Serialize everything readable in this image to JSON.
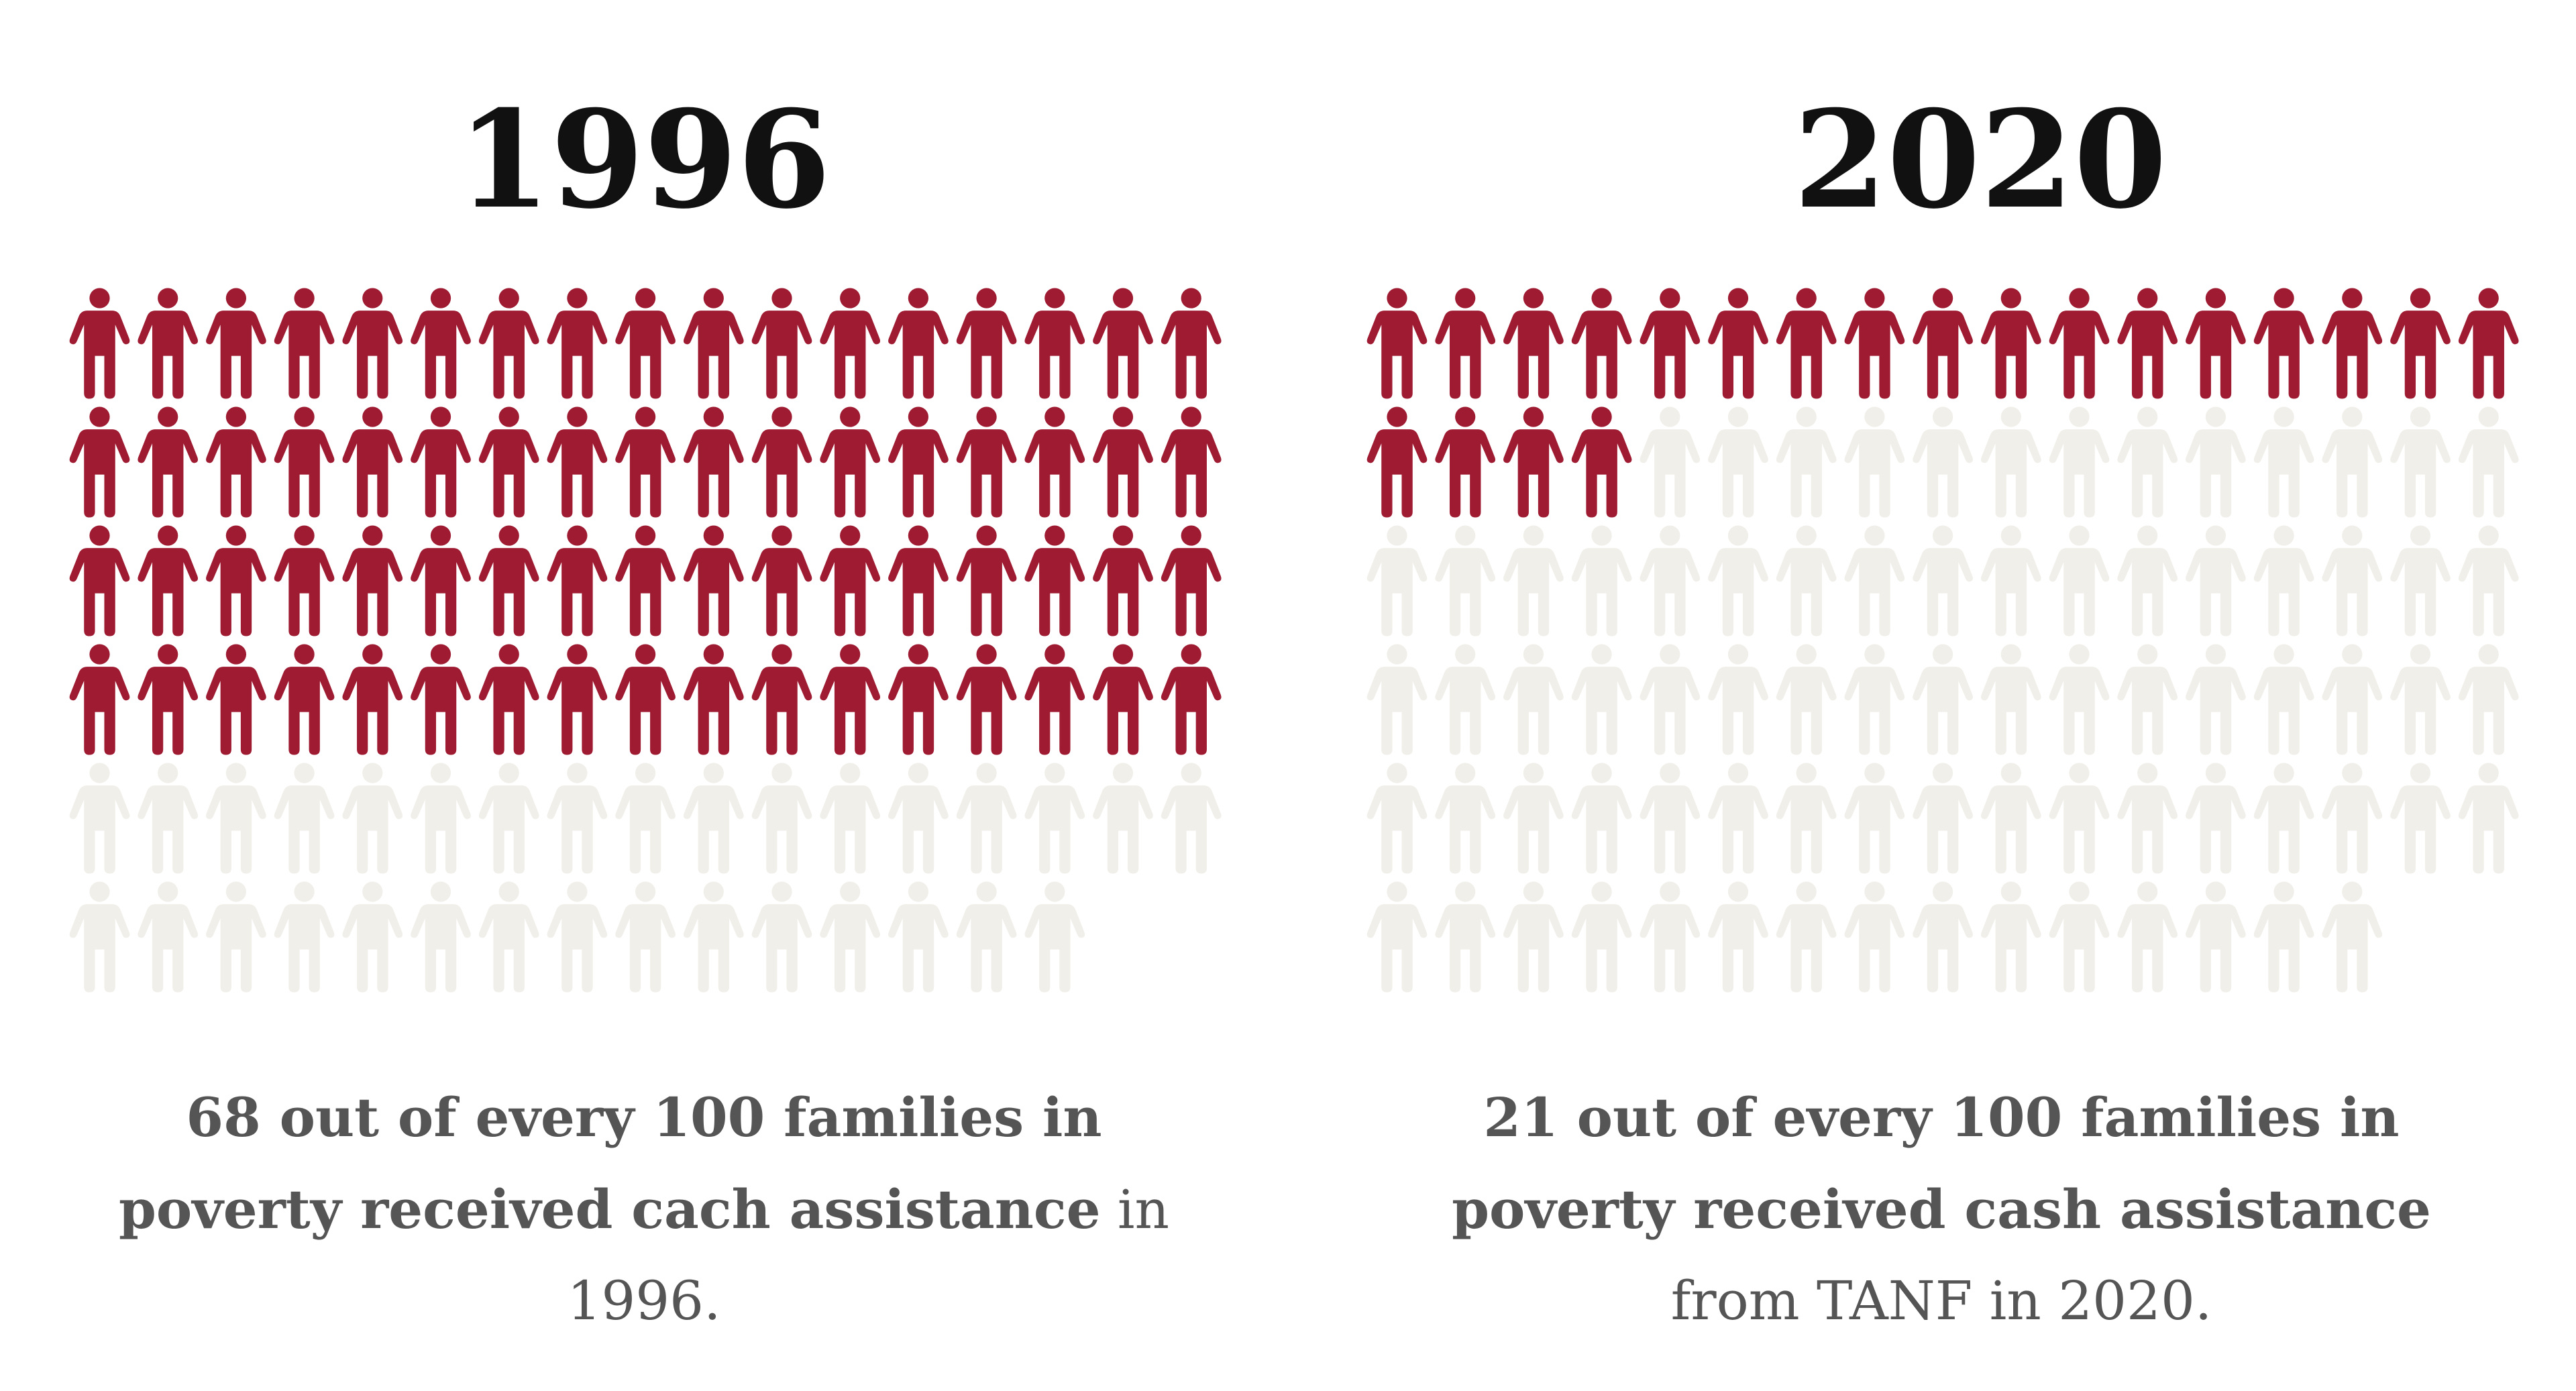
{
  "chart_data": [
    {
      "type": "pictogram",
      "title": "1996",
      "value": 68,
      "total": 100,
      "color": "#9e1b32",
      "empty_color": "#f1efe9",
      "caption_bold": "68 out of every 100 families in poverty received cach assistance",
      "caption_rest": "in 1996."
    },
    {
      "type": "pictogram",
      "title": "2020",
      "value": 21,
      "total": 100,
      "color": "#9e1b32",
      "empty_color": "#f1efe9",
      "caption_bold": "21 out of every 100 families in poverty received cash assistance",
      "caption_rest": "from TANF in 2020."
    }
  ]
}
